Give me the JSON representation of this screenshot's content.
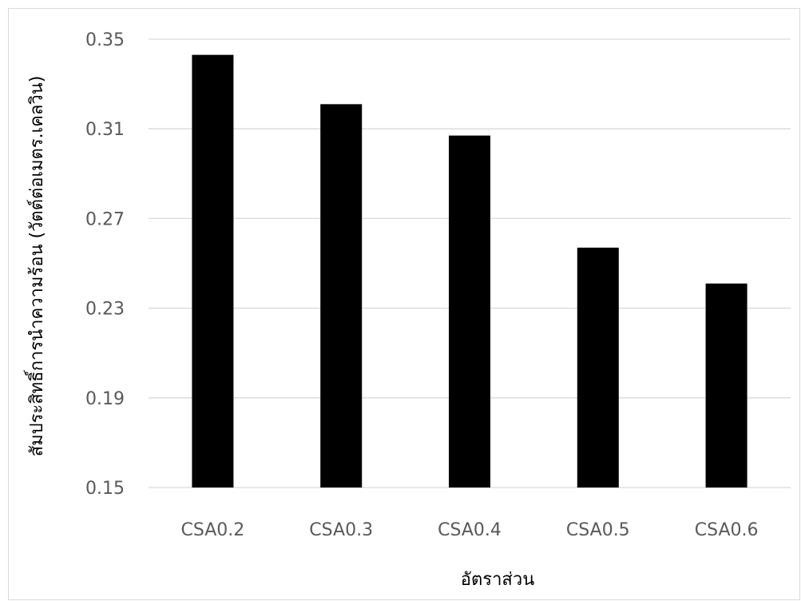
{
  "chart_data": {
    "type": "bar",
    "title": "",
    "xlabel": "อัตราส่วน",
    "ylabel": "สัมประสิทธิ์การนำความร้อน (วัตต์ต่อเมตร.เคลวิน)",
    "categories": [
      "CSA0.2",
      "CSA0.3",
      "CSA0.4",
      "CSA0.5",
      "CSA0.6"
    ],
    "values": [
      0.343,
      0.321,
      0.307,
      0.257,
      0.241
    ],
    "ylim": [
      0.15,
      0.35
    ],
    "yticks": [
      "0.15",
      "0.19",
      "0.23",
      "0.27",
      "0.31",
      "0.35"
    ],
    "grid": true,
    "legend": "none",
    "colors": {
      "bar": "#000000",
      "gridline": "#d9d9d9",
      "tick_text": "#595959",
      "axis_title": "#000000"
    }
  }
}
